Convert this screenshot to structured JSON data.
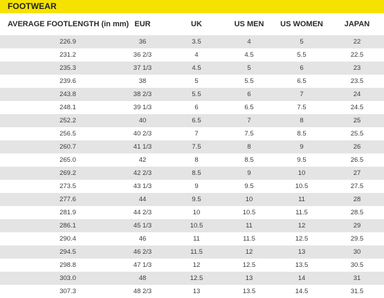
{
  "title": "FOOTWEAR",
  "columns": [
    "AVERAGE FOOTLENGTH (in mm)",
    "EUR",
    "UK",
    "US MEN",
    "US WOMEN",
    "JAPAN"
  ],
  "rows": [
    [
      "226.9",
      "36",
      "3.5",
      "4",
      "5",
      "22"
    ],
    [
      "231.2",
      "36 2/3",
      "4",
      "4.5",
      "5.5",
      "22.5"
    ],
    [
      "235.3",
      "37 1/3",
      "4.5",
      "5",
      "6",
      "23"
    ],
    [
      "239.6",
      "38",
      "5",
      "5.5",
      "6.5",
      "23.5"
    ],
    [
      "243.8",
      "38 2/3",
      "5.5",
      "6",
      "7",
      "24"
    ],
    [
      "248.1",
      "39 1/3",
      "6",
      "6.5",
      "7.5",
      "24.5"
    ],
    [
      "252.2",
      "40",
      "6.5",
      "7",
      "8",
      "25"
    ],
    [
      "256.5",
      "40 2/3",
      "7",
      "7.5",
      "8.5",
      "25.5"
    ],
    [
      "260.7",
      "41 1/3",
      "7.5",
      "8",
      "9",
      "26"
    ],
    [
      "265.0",
      "42",
      "8",
      "8.5",
      "9.5",
      "26.5"
    ],
    [
      "269.2",
      "42 2/3",
      "8.5",
      "9",
      "10",
      "27"
    ],
    [
      "273.5",
      "43 1/3",
      "9",
      "9.5",
      "10.5",
      "27.5"
    ],
    [
      "277.6",
      "44",
      "9.5",
      "10",
      "11",
      "28"
    ],
    [
      "281.9",
      "44 2/3",
      "10",
      "10.5",
      "11.5",
      "28.5"
    ],
    [
      "286.1",
      "45 1/3",
      "10.5",
      "11",
      "12",
      "29"
    ],
    [
      "290.4",
      "46",
      "11",
      "11.5",
      "12.5",
      "29.5"
    ],
    [
      "294.5",
      "46 2/3",
      "11.5",
      "12",
      "13",
      "30"
    ],
    [
      "298.8",
      "47 1/3",
      "12",
      "12.5",
      "13.5",
      "30.5"
    ],
    [
      "303.0",
      "48",
      "12.5",
      "13",
      "14",
      "31"
    ],
    [
      "307.3",
      "48 2/3",
      "13",
      "13.5",
      "14.5",
      "31.5"
    ]
  ]
}
